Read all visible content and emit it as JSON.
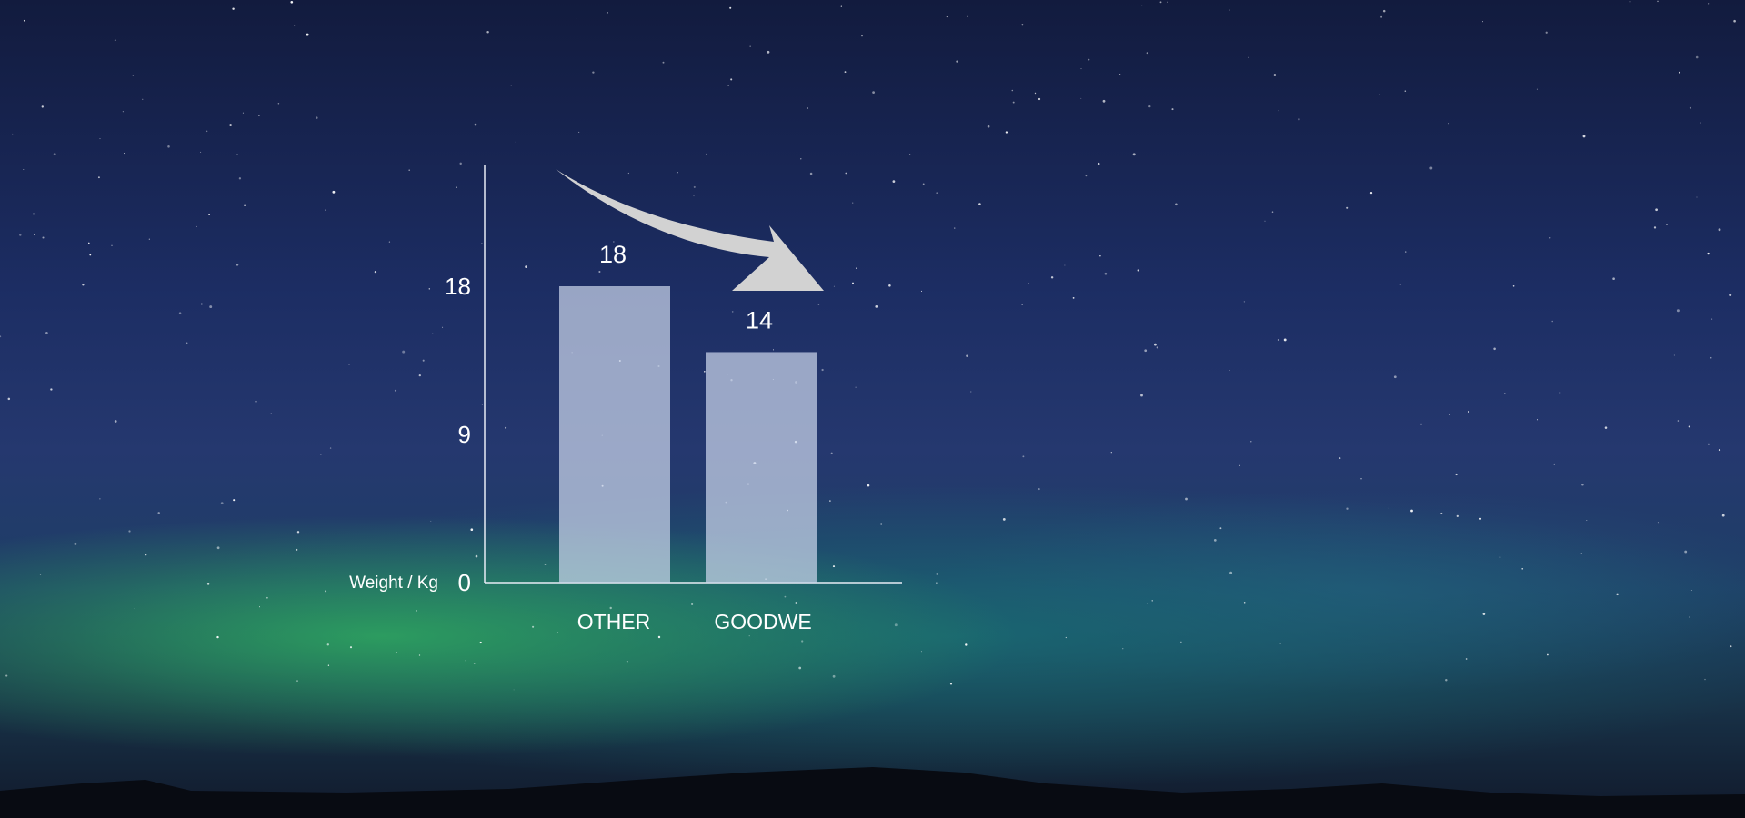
{
  "chart_data": {
    "type": "bar",
    "categories": [
      "OTHER",
      "GOODWE"
    ],
    "values": [
      18,
      14
    ],
    "data_labels": [
      "18",
      "14"
    ],
    "ylabel": "Weight / Kg",
    "yticks": [
      "0",
      "9",
      "18"
    ],
    "ytick_values": [
      0,
      9,
      18
    ],
    "ylim": [
      0,
      18
    ],
    "grid": false,
    "legend": "none",
    "bar_color": "#c9d4ea",
    "axis_color": "#e8ecf5",
    "arrow_color": "#d2d2d2"
  }
}
